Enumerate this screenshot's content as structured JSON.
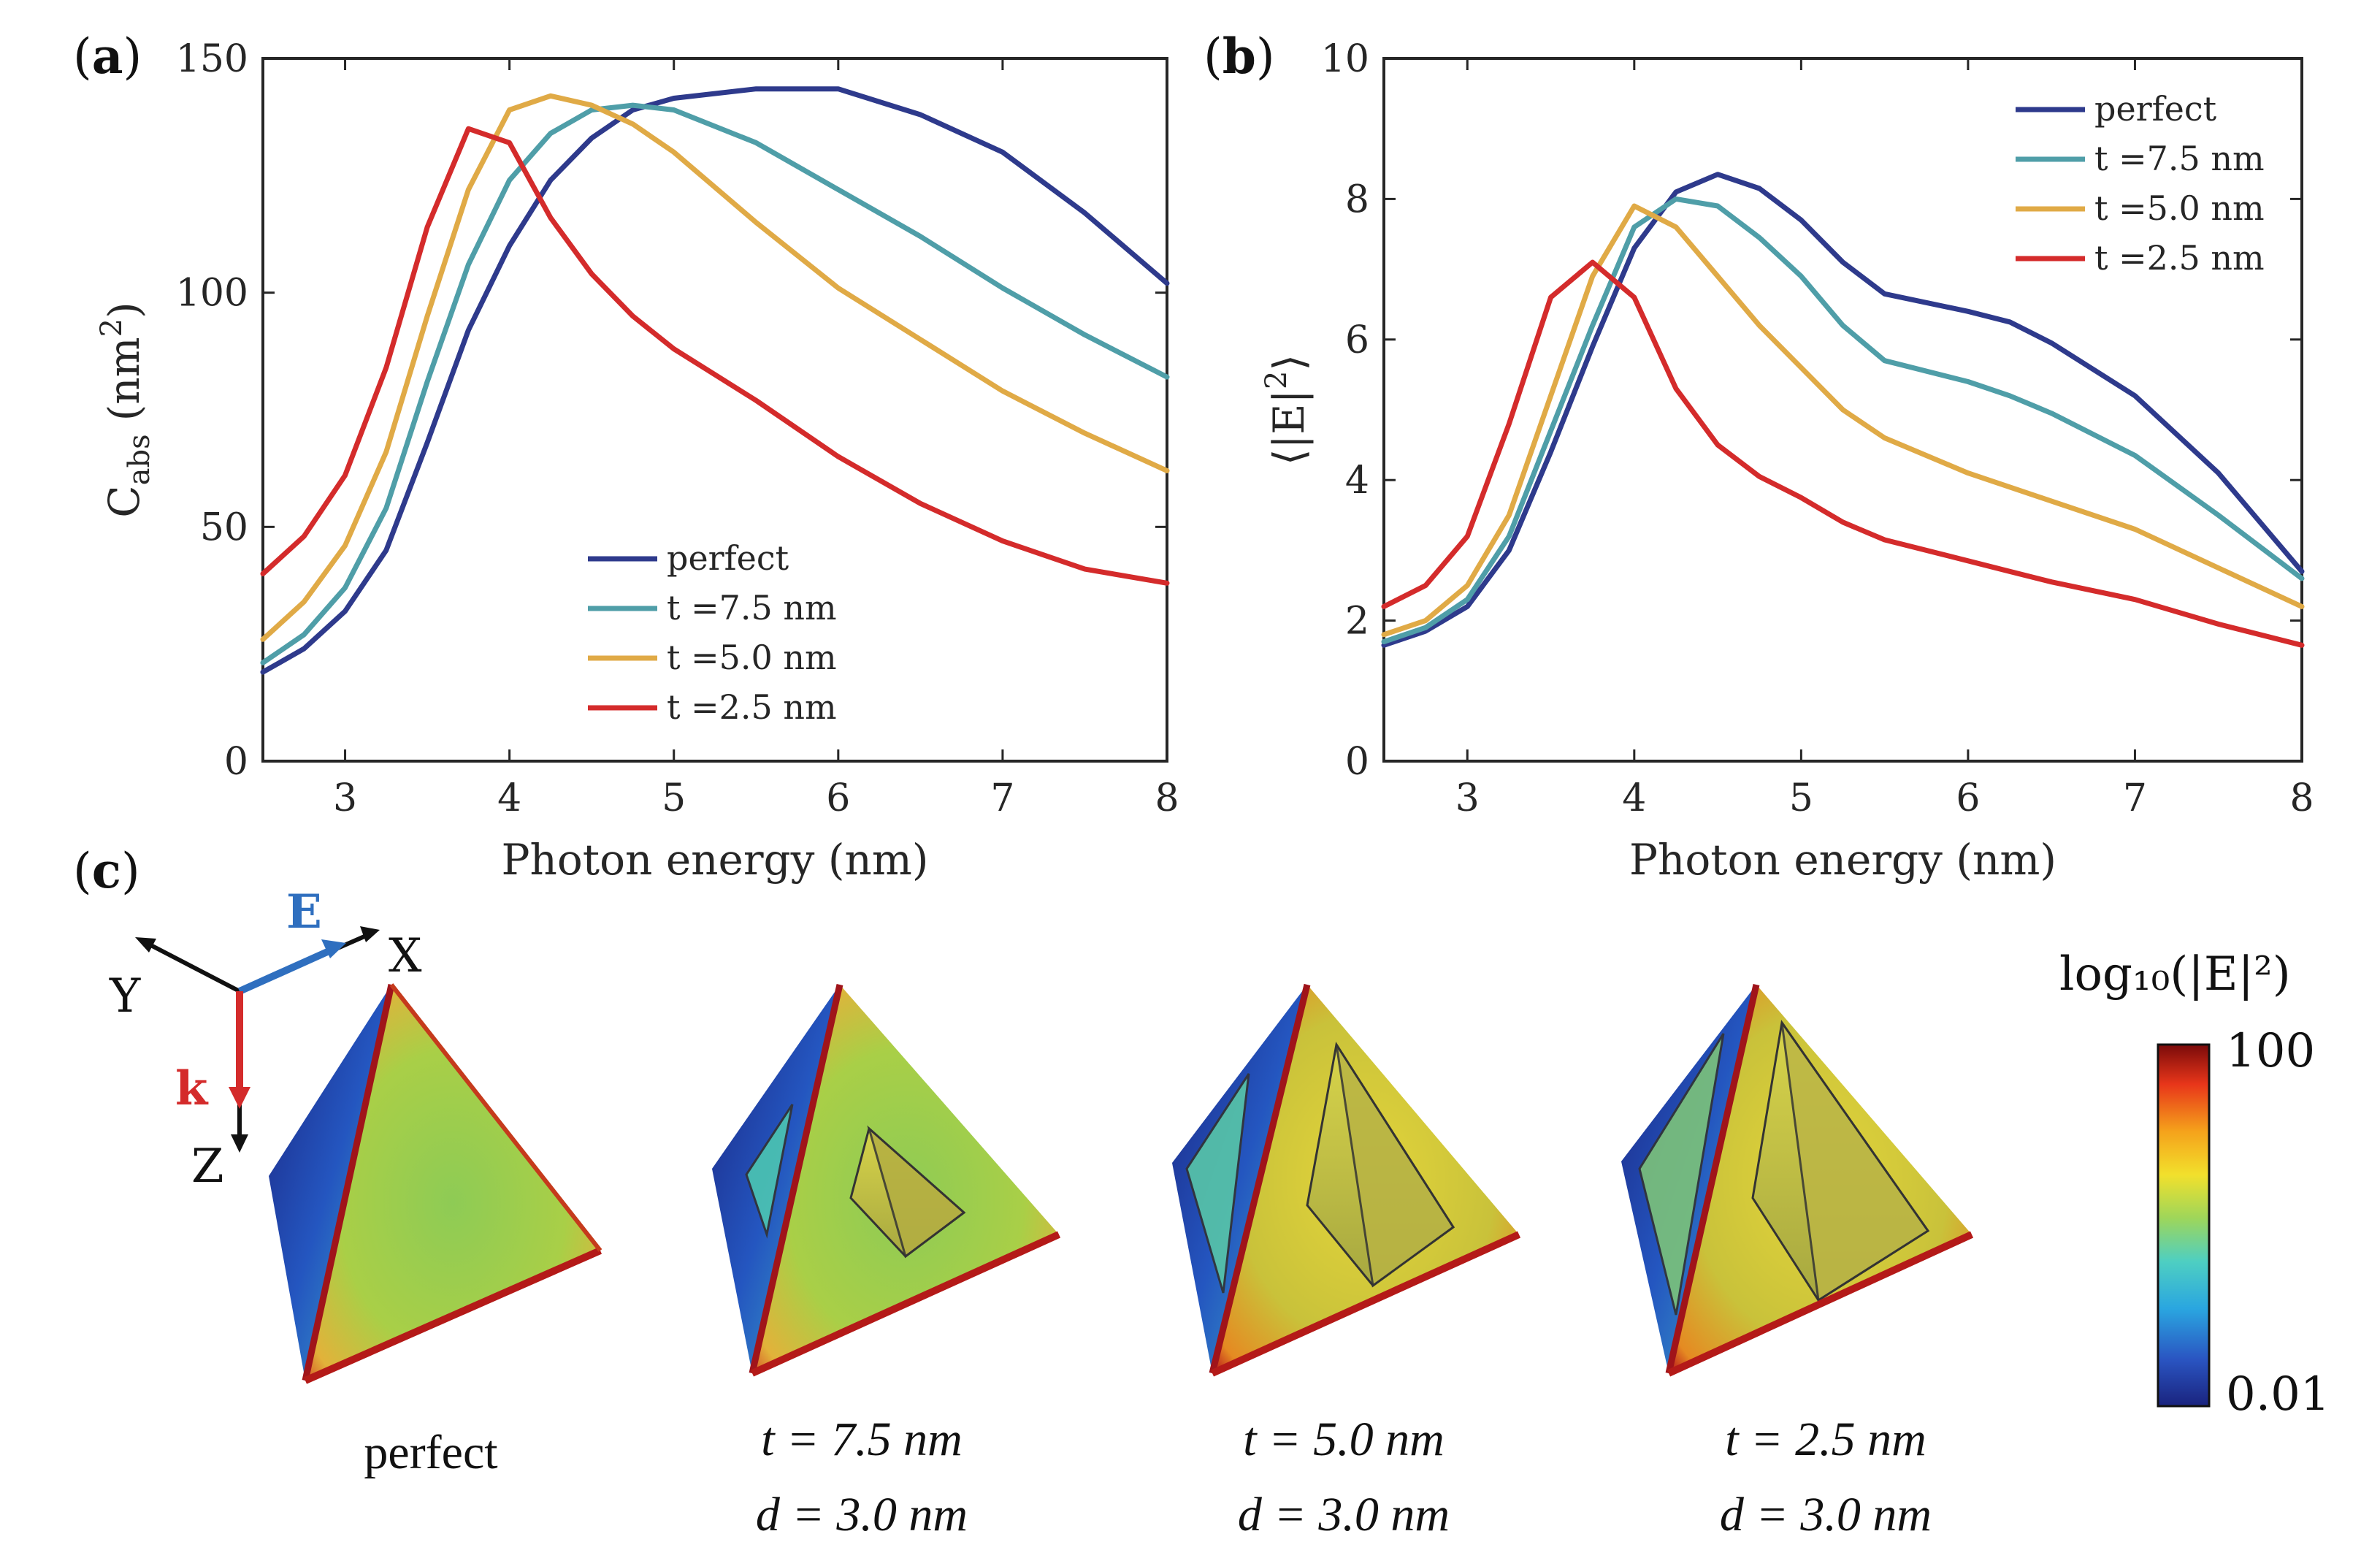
{
  "panel_labels": {
    "a": "a",
    "b": "b",
    "c": "c"
  },
  "chart_data": [
    {
      "type": "line",
      "panel": "a",
      "title": "",
      "xlabel": "Photon energy (nm)",
      "ylabel_main": "C",
      "ylabel_sub": "abs",
      "ylabel_unit": "(nm",
      "ylabel_sup": "2",
      "ylabel_close": ")",
      "xlim": [
        2.5,
        8
      ],
      "ylim": [
        0,
        150
      ],
      "xticks": [
        "3",
        "4",
        "5",
        "6",
        "7",
        "8"
      ],
      "yticks": [
        "0",
        "50",
        "100",
        "150"
      ],
      "legend": {
        "placement": "bottom-center"
      },
      "x": [
        2.5,
        2.75,
        3.0,
        3.25,
        3.5,
        3.75,
        4.0,
        4.25,
        4.5,
        4.75,
        5.0,
        5.5,
        6.0,
        6.5,
        7.0,
        7.5,
        8.0
      ],
      "series": [
        {
          "name": "perfect",
          "color": "#2e3a8c",
          "values": [
            19,
            24,
            32,
            45,
            68,
            92,
            110,
            124,
            133,
            139,
            141.5,
            143.5,
            143.5,
            138,
            130,
            117,
            102
          ]
        },
        {
          "name": "t =7.5 nm",
          "color": "#4f9ea8",
          "values": [
            21,
            27,
            37,
            54,
            81,
            106,
            124,
            134,
            139,
            140,
            139,
            132,
            122,
            112,
            101,
            91,
            82
          ]
        },
        {
          "name": "t =5.0 nm",
          "color": "#e0aa46",
          "values": [
            26,
            34,
            46,
            66,
            95,
            122,
            139,
            142,
            140,
            136,
            130,
            115,
            101,
            90,
            79,
            70,
            62
          ]
        },
        {
          "name": "t =2.5 nm",
          "color": "#d42b2b",
          "values": [
            40,
            48,
            61,
            84,
            114,
            135,
            132,
            116,
            104,
            95,
            88,
            77,
            65,
            55,
            47,
            41,
            38
          ]
        }
      ]
    },
    {
      "type": "line",
      "panel": "b",
      "title": "",
      "xlabel": "Photon energy (nm)",
      "ylabel_open": "⟨|E|",
      "ylabel_sup": "2",
      "ylabel_close": "⟩",
      "xlim": [
        2.5,
        8
      ],
      "ylim": [
        0,
        10
      ],
      "xticks": [
        "3",
        "4",
        "5",
        "6",
        "7",
        "8"
      ],
      "yticks": [
        "0",
        "2",
        "4",
        "6",
        "8",
        "10"
      ],
      "legend": {
        "placement": "top-right"
      },
      "x": [
        2.5,
        2.75,
        3.0,
        3.25,
        3.5,
        3.75,
        4.0,
        4.25,
        4.5,
        4.75,
        5.0,
        5.25,
        5.5,
        6.0,
        6.25,
        6.5,
        7.0,
        7.5,
        8.0
      ],
      "series": [
        {
          "name": "perfect",
          "color": "#2e3a8c",
          "values": [
            1.65,
            1.85,
            2.2,
            3.0,
            4.4,
            5.9,
            7.3,
            8.1,
            8.35,
            8.15,
            7.7,
            7.1,
            6.65,
            6.4,
            6.25,
            5.95,
            5.2,
            4.1,
            2.7
          ]
        },
        {
          "name": "t =7.5 nm",
          "color": "#4f9ea8",
          "values": [
            1.7,
            1.9,
            2.3,
            3.2,
            4.7,
            6.2,
            7.6,
            8.0,
            7.9,
            7.45,
            6.9,
            6.2,
            5.7,
            5.4,
            5.2,
            4.95,
            4.35,
            3.5,
            2.6
          ]
        },
        {
          "name": "t =5.0 nm",
          "color": "#e0aa46",
          "values": [
            1.8,
            2.0,
            2.5,
            3.5,
            5.2,
            6.9,
            7.9,
            7.6,
            6.9,
            6.2,
            5.6,
            5.0,
            4.6,
            4.1,
            3.9,
            3.7,
            3.3,
            2.75,
            2.2
          ]
        },
        {
          "name": "t =2.5 nm",
          "color": "#d42b2b",
          "values": [
            2.2,
            2.5,
            3.2,
            4.8,
            6.6,
            7.1,
            6.6,
            5.3,
            4.5,
            4.05,
            3.75,
            3.4,
            3.15,
            2.85,
            2.7,
            2.55,
            2.3,
            1.95,
            1.65
          ]
        }
      ]
    }
  ],
  "panel_c": {
    "axes": {
      "x": "X",
      "y": "Y",
      "z": "Z",
      "e": "E",
      "k": "k"
    },
    "structures": [
      {
        "line1": "perfect",
        "line2": ""
      },
      {
        "line1": "t = 7.5 nm",
        "line2": "d = 3.0 nm"
      },
      {
        "line1": "t = 5.0 nm",
        "line2": "d = 3.0 nm"
      },
      {
        "line1": "t = 2.5 nm",
        "line2": "d = 3.0 nm"
      }
    ],
    "colorbar": {
      "title": "log₁₀(|E|²)",
      "max_label": "100",
      "min_label": "0.01",
      "colors": [
        "#1a237e",
        "#2a55c2",
        "#2aa6e0",
        "#4ecfc2",
        "#9ed65a",
        "#f2e02c",
        "#f5a21b",
        "#e8361a",
        "#7a0a0a"
      ]
    },
    "colors": {
      "e_arrow": "#2f6fbf",
      "k_arrow": "#d42b2b",
      "axis_arrow": "#111111"
    }
  }
}
